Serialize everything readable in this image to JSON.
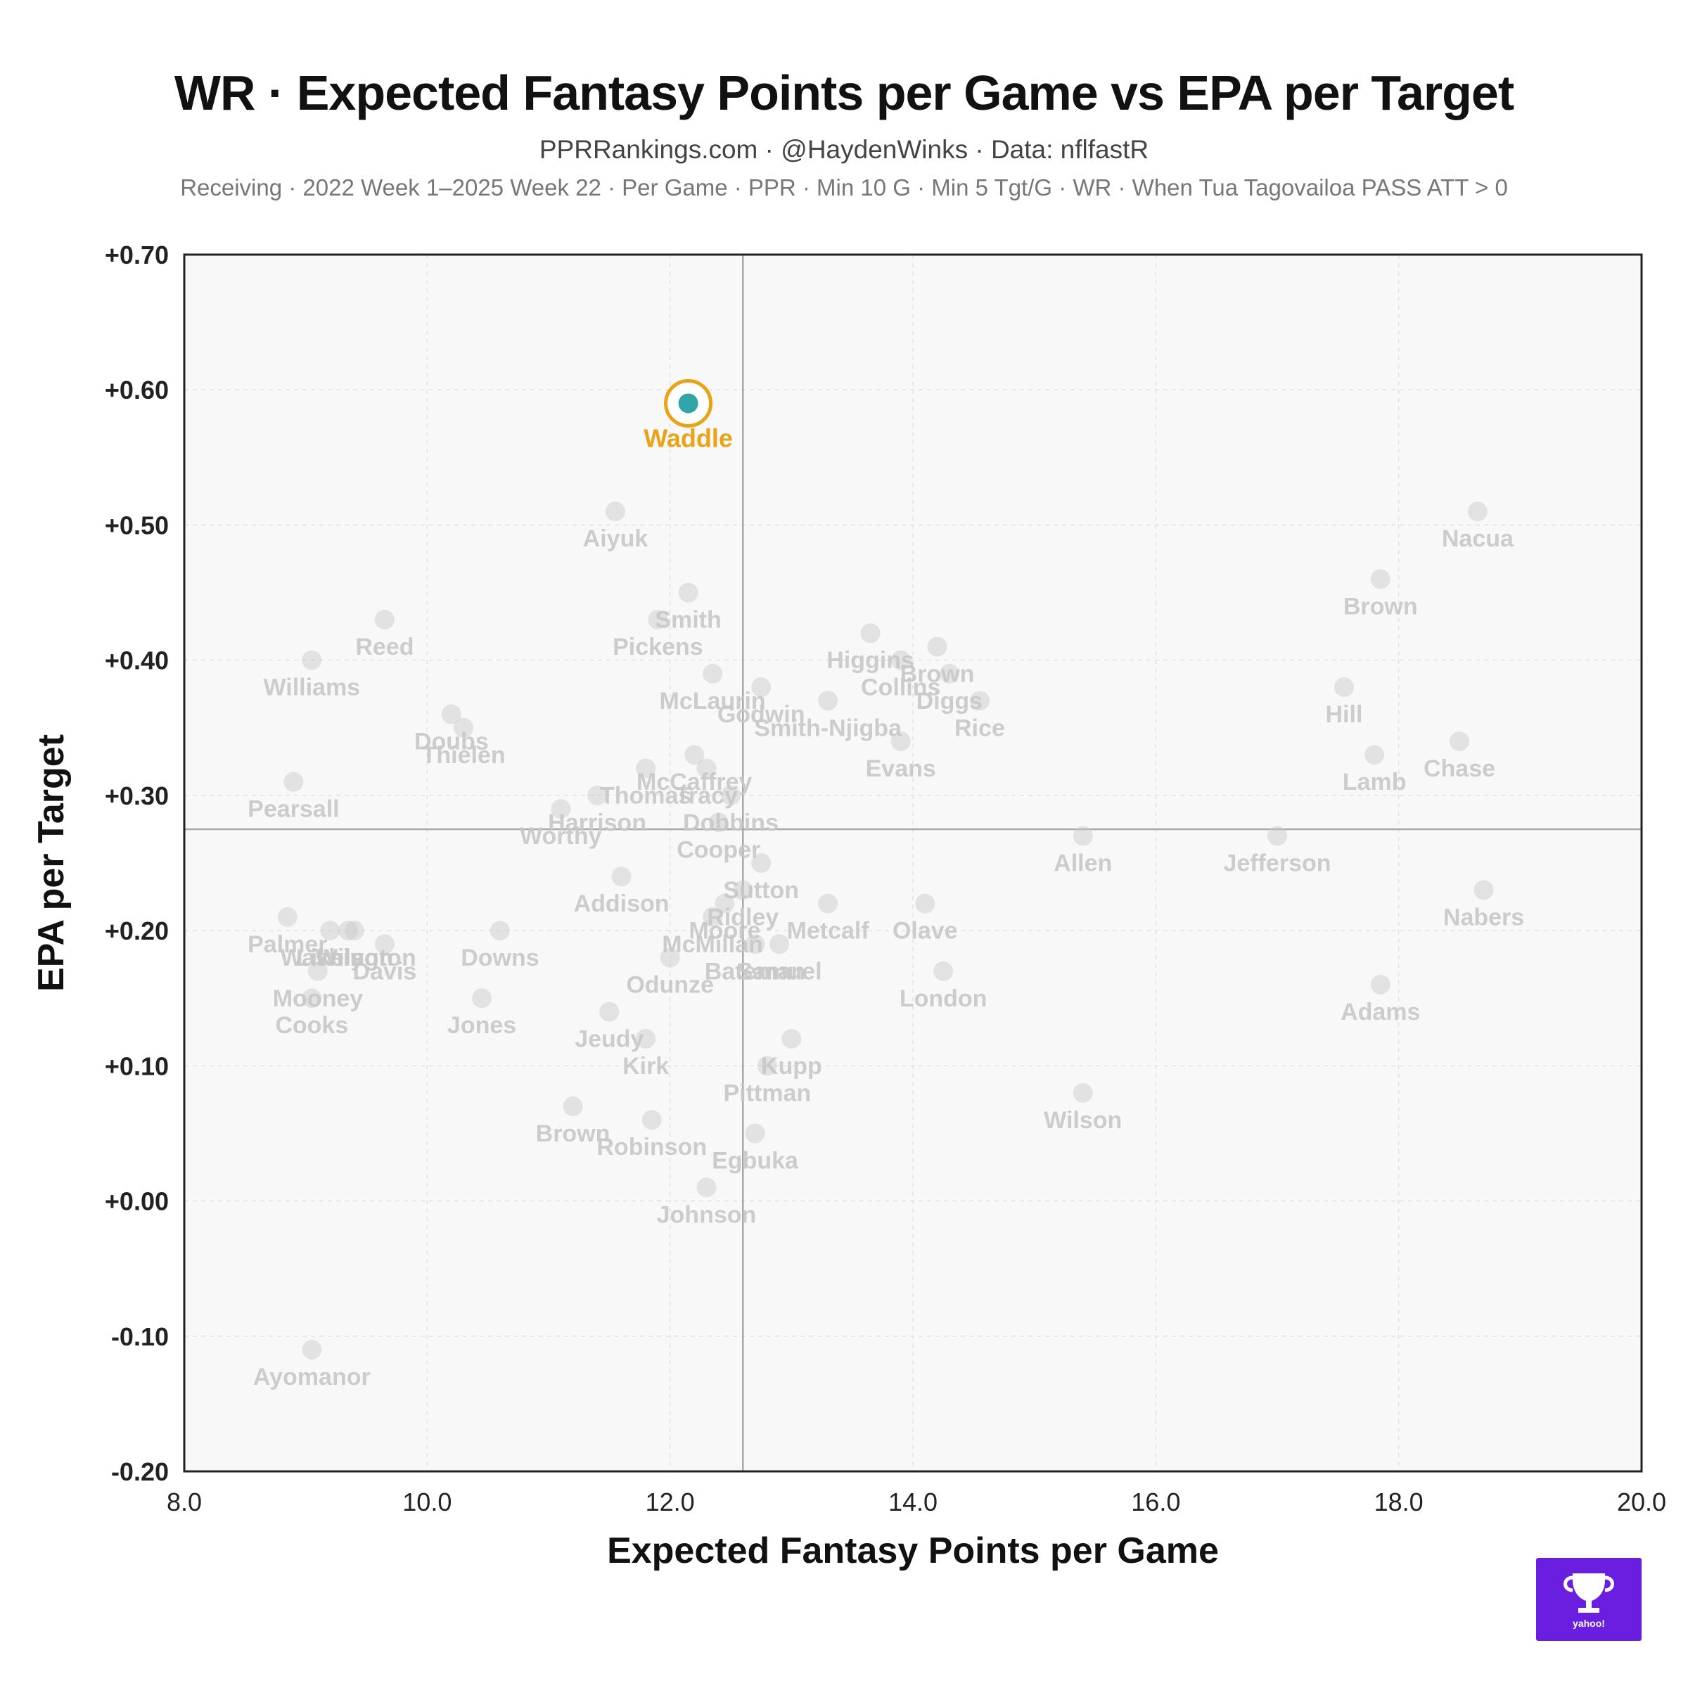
{
  "header": {
    "title": "WR · Expected Fantasy Points per Game vs EPA per Target",
    "subtitle": "PPRRankings.com · @HaydenWinks · Data: nflfastR",
    "filters": "Receiving · 2022 Week 1–2025 Week 22 · Per Game · PPR · Min 10 G · Min 5 Tgt/G · WR · When Tua Tagovailoa PASS ATT > 0"
  },
  "branding": {
    "logo_text": "yahoo!",
    "logo_color": "#6a1fe0"
  },
  "chart_data": {
    "type": "scatter",
    "xlabel": "Expected Fantasy Points per Game",
    "ylabel": "EPA per Target",
    "xlim": [
      8.0,
      20.0
    ],
    "ylim": [
      -0.2,
      0.7
    ],
    "xticks": [
      "8.0",
      "10.0",
      "12.0",
      "14.0",
      "16.0",
      "18.0",
      "20.0"
    ],
    "yticks": [
      "+0.70",
      "+0.60",
      "+0.50",
      "+0.40",
      "+0.30",
      "+0.20",
      "+0.10",
      "+0.00",
      "-0.10",
      "-0.20"
    ],
    "xtick_values": [
      8,
      10,
      12,
      14,
      16,
      18,
      20
    ],
    "ytick_values": [
      0.7,
      0.6,
      0.5,
      0.4,
      0.3,
      0.2,
      0.1,
      0.0,
      -0.1,
      -0.2
    ],
    "grid": true,
    "reference_lines": {
      "x": 12.6,
      "y": 0.275
    },
    "highlight_color": "#e8a317",
    "muted_color": "#c8c8c8",
    "points": [
      {
        "name": "Waddle",
        "x": 12.15,
        "y": 0.59,
        "highlight": true
      },
      {
        "name": "Aiyuk",
        "x": 11.55,
        "y": 0.51
      },
      {
        "name": "Nacua",
        "x": 18.65,
        "y": 0.51
      },
      {
        "name": "Brown",
        "x": 17.85,
        "y": 0.46
      },
      {
        "name": "Smith",
        "x": 12.15,
        "y": 0.45
      },
      {
        "name": "Pickens",
        "x": 11.9,
        "y": 0.43
      },
      {
        "name": "Reed",
        "x": 9.65,
        "y": 0.43
      },
      {
        "name": "Higgins",
        "x": 13.65,
        "y": 0.42
      },
      {
        "name": "Brown",
        "x": 14.2,
        "y": 0.41
      },
      {
        "name": "Williams",
        "x": 9.05,
        "y": 0.4
      },
      {
        "name": "Collins",
        "x": 13.9,
        "y": 0.4
      },
      {
        "name": "Diggs",
        "x": 14.3,
        "y": 0.39
      },
      {
        "name": "McLaurin",
        "x": 12.35,
        "y": 0.39
      },
      {
        "name": "Godwin",
        "x": 12.75,
        "y": 0.38
      },
      {
        "name": "Hill",
        "x": 17.55,
        "y": 0.38
      },
      {
        "name": "Smith-Njigba",
        "x": 13.3,
        "y": 0.37
      },
      {
        "name": "Rice",
        "x": 14.55,
        "y": 0.37
      },
      {
        "name": "Doubs",
        "x": 10.2,
        "y": 0.36
      },
      {
        "name": "Thielen",
        "x": 10.3,
        "y": 0.35
      },
      {
        "name": "Evans",
        "x": 13.9,
        "y": 0.34
      },
      {
        "name": "Chase",
        "x": 18.5,
        "y": 0.34
      },
      {
        "name": "McCaffrey",
        "x": 12.2,
        "y": 0.33
      },
      {
        "name": "Lamb",
        "x": 17.8,
        "y": 0.33
      },
      {
        "name": "Thomas",
        "x": 11.8,
        "y": 0.32
      },
      {
        "name": "Tracy",
        "x": 12.3,
        "y": 0.32
      },
      {
        "name": "Pearsall",
        "x": 8.9,
        "y": 0.31
      },
      {
        "name": "Dobbins",
        "x": 12.5,
        "y": 0.3
      },
      {
        "name": "Harrison",
        "x": 11.4,
        "y": 0.3
      },
      {
        "name": "Worthy",
        "x": 11.1,
        "y": 0.29
      },
      {
        "name": "Cooper",
        "x": 12.4,
        "y": 0.28
      },
      {
        "name": "Allen",
        "x": 15.4,
        "y": 0.27
      },
      {
        "name": "Jefferson",
        "x": 17.0,
        "y": 0.27
      },
      {
        "name": "Sutton",
        "x": 12.75,
        "y": 0.25
      },
      {
        "name": "Addison",
        "x": 11.6,
        "y": 0.24
      },
      {
        "name": "Ridley",
        "x": 12.6,
        "y": 0.23
      },
      {
        "name": "Nabers",
        "x": 18.7,
        "y": 0.23
      },
      {
        "name": "Metcalf",
        "x": 13.3,
        "y": 0.22
      },
      {
        "name": "Olave",
        "x": 14.1,
        "y": 0.22
      },
      {
        "name": "Moore",
        "x": 12.45,
        "y": 0.22
      },
      {
        "name": "Palmer",
        "x": 8.85,
        "y": 0.21
      },
      {
        "name": "McMillan",
        "x": 12.35,
        "y": 0.21
      },
      {
        "name": "Washington",
        "x": 9.35,
        "y": 0.2
      },
      {
        "name": "Downs",
        "x": 10.6,
        "y": 0.2
      },
      {
        "name": "Wilson",
        "x": 9.4,
        "y": 0.2
      },
      {
        "name": "Likely",
        "x": 9.2,
        "y": 0.2
      },
      {
        "name": "Samuel",
        "x": 12.9,
        "y": 0.19
      },
      {
        "name": "Bateman",
        "x": 12.7,
        "y": 0.19
      },
      {
        "name": "Davis",
        "x": 9.65,
        "y": 0.19
      },
      {
        "name": "Odunze",
        "x": 12.0,
        "y": 0.18
      },
      {
        "name": "Mooney",
        "x": 9.1,
        "y": 0.17
      },
      {
        "name": "London",
        "x": 14.25,
        "y": 0.17
      },
      {
        "name": "Adams",
        "x": 17.85,
        "y": 0.16
      },
      {
        "name": "Cooks",
        "x": 9.05,
        "y": 0.15
      },
      {
        "name": "Jones",
        "x": 10.45,
        "y": 0.15
      },
      {
        "name": "Jeudy",
        "x": 11.5,
        "y": 0.14
      },
      {
        "name": "Kirk",
        "x": 11.8,
        "y": 0.12
      },
      {
        "name": "Kupp",
        "x": 13.0,
        "y": 0.12
      },
      {
        "name": "Pittman",
        "x": 12.8,
        "y": 0.1
      },
      {
        "name": "Wilson",
        "x": 15.4,
        "y": 0.08
      },
      {
        "name": "Brown",
        "x": 11.2,
        "y": 0.07
      },
      {
        "name": "Robinson",
        "x": 11.85,
        "y": 0.06
      },
      {
        "name": "Egbuka",
        "x": 12.7,
        "y": 0.05
      },
      {
        "name": "Johnson",
        "x": 12.3,
        "y": 0.01
      },
      {
        "name": "Ayomanor",
        "x": 9.05,
        "y": -0.11
      }
    ]
  }
}
